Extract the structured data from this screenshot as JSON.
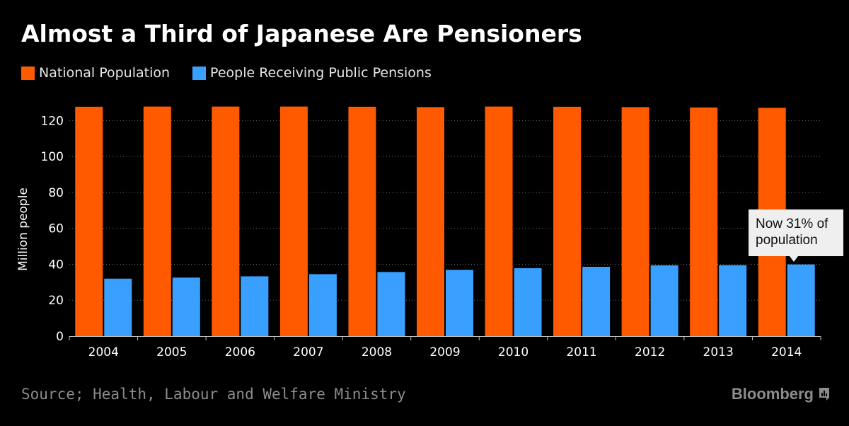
{
  "chart_data": {
    "type": "bar",
    "title": "Almost a Third of Japanese Are Pensioners",
    "xlabel": "",
    "ylabel": "Million people",
    "ylim": [
      0,
      130
    ],
    "yticks": [
      0,
      20,
      40,
      60,
      80,
      100,
      120
    ],
    "grid": true,
    "legend_position": "top-left",
    "categories": [
      "2004",
      "2005",
      "2006",
      "2007",
      "2008",
      "2009",
      "2010",
      "2011",
      "2012",
      "2013",
      "2014"
    ],
    "series": [
      {
        "name": "National Population",
        "color": "#ff5a00",
        "values": [
          127.7,
          127.8,
          127.8,
          127.8,
          127.7,
          127.5,
          127.8,
          127.7,
          127.5,
          127.3,
          127.1
        ]
      },
      {
        "name": "People Receiving Public Pensions",
        "color": "#3aa0ff",
        "values": [
          32.0,
          32.6,
          33.3,
          34.5,
          35.7,
          36.9,
          37.8,
          38.6,
          39.4,
          39.5,
          39.9
        ]
      }
    ],
    "annotation": {
      "text_line1": "Now 31% of",
      "text_line2": "population",
      "category": "2014",
      "series_index": 1
    }
  },
  "source": "Source; Health, Labour and Welfare Ministry",
  "brand": "Bloomberg",
  "brand_icon": "bloomberg-chart-icon"
}
